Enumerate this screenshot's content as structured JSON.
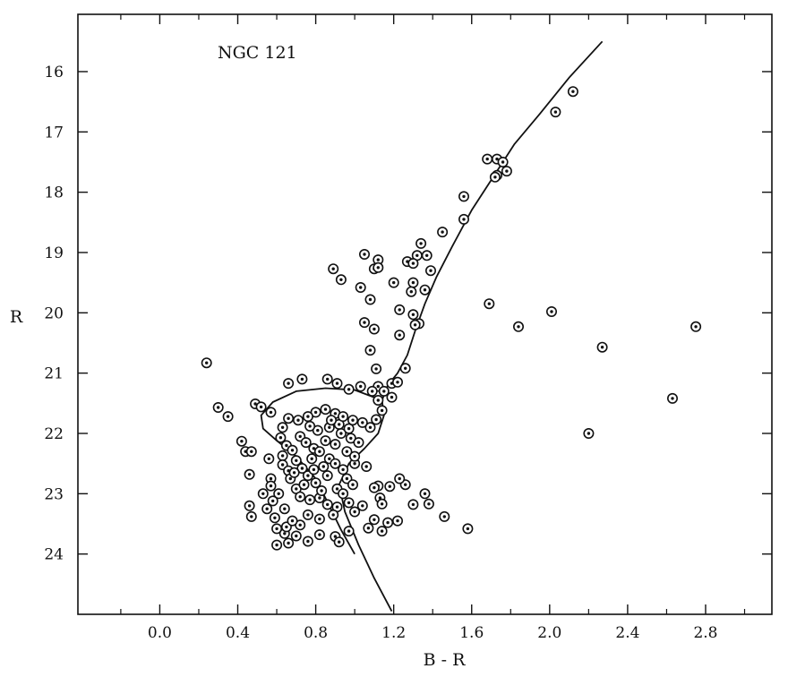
{
  "chart_data": {
    "type": "scatter",
    "title": "NGC 121",
    "xlabel": "B - R",
    "ylabel": "R",
    "xlim": [
      -0.42,
      3.14
    ],
    "ylim": [
      25.0,
      15.05
    ],
    "y_inverted": true,
    "x_ticks": [
      0.0,
      0.4,
      0.8,
      1.2,
      1.6,
      2.0,
      2.4,
      2.8
    ],
    "x_tick_labels": [
      "0.0",
      "0.4",
      "0.8",
      "1.2",
      "1.6",
      "2.0",
      "2.4",
      "2.8"
    ],
    "y_ticks": [
      16,
      17,
      18,
      19,
      20,
      21,
      22,
      23,
      24
    ],
    "y_tick_labels": [
      "16",
      "17",
      "18",
      "19",
      "20",
      "21",
      "22",
      "23",
      "24"
    ],
    "minor_x_step": 0.2,
    "grid": false,
    "legend": "none",
    "marker_color": "#111111",
    "line_color": "#111111",
    "isochrone": {
      "giant_and_subgiant": [
        [
          2.27,
          15.5
        ],
        [
          2.1,
          16.1
        ],
        [
          1.95,
          16.7
        ],
        [
          1.82,
          17.2
        ],
        [
          1.72,
          17.7
        ],
        [
          1.6,
          18.3
        ],
        [
          1.5,
          18.9
        ],
        [
          1.42,
          19.4
        ],
        [
          1.36,
          19.85
        ],
        [
          1.31,
          20.3
        ],
        [
          1.27,
          20.7
        ],
        [
          1.22,
          21.0
        ],
        [
          1.17,
          21.2
        ],
        [
          1.14,
          21.45
        ],
        [
          1.15,
          21.7
        ],
        [
          1.12,
          22.0
        ],
        [
          1.05,
          22.25
        ],
        [
          0.97,
          22.5
        ],
        [
          0.92,
          22.85
        ],
        [
          0.95,
          23.3
        ],
        [
          1.02,
          23.85
        ],
        [
          1.1,
          24.4
        ],
        [
          1.19,
          24.95
        ]
      ],
      "horizontal_branch_loop": [
        [
          1.14,
          21.45
        ],
        [
          1.0,
          21.28
        ],
        [
          0.85,
          21.25
        ],
        [
          0.7,
          21.3
        ],
        [
          0.58,
          21.48
        ],
        [
          0.52,
          21.7
        ],
        [
          0.53,
          21.92
        ],
        [
          0.6,
          22.12
        ],
        [
          0.7,
          22.38
        ],
        [
          0.8,
          22.75
        ],
        [
          0.87,
          23.2
        ],
        [
          0.93,
          23.6
        ],
        [
          1.0,
          24.0
        ]
      ]
    },
    "series": [
      {
        "points": [
          [
            2.12,
            16.33
          ],
          [
            2.03,
            16.67
          ],
          [
            1.68,
            17.45
          ],
          [
            1.73,
            17.45
          ],
          [
            1.76,
            17.5
          ],
          [
            1.78,
            17.65
          ],
          [
            1.73,
            17.72
          ],
          [
            1.72,
            17.75
          ],
          [
            1.56,
            18.07
          ],
          [
            1.56,
            18.45
          ],
          [
            1.45,
            18.66
          ],
          [
            1.34,
            18.85
          ],
          [
            1.32,
            19.05
          ],
          [
            1.27,
            19.15
          ],
          [
            1.3,
            19.18
          ],
          [
            1.37,
            19.05
          ],
          [
            1.39,
            19.3
          ],
          [
            1.2,
            19.5
          ],
          [
            1.05,
            19.03
          ],
          [
            1.12,
            19.12
          ],
          [
            1.1,
            19.27
          ],
          [
            1.12,
            19.25
          ],
          [
            0.89,
            19.27
          ],
          [
            0.93,
            19.45
          ],
          [
            1.03,
            19.58
          ],
          [
            1.08,
            19.78
          ],
          [
            1.3,
            19.5
          ],
          [
            1.36,
            19.62
          ],
          [
            1.29,
            19.65
          ],
          [
            1.23,
            19.95
          ],
          [
            1.3,
            20.03
          ],
          [
            1.33,
            20.18
          ],
          [
            1.31,
            20.2
          ],
          [
            1.05,
            20.16
          ],
          [
            1.1,
            20.27
          ],
          [
            1.23,
            20.37
          ],
          [
            1.08,
            20.62
          ],
          [
            1.26,
            20.92
          ],
          [
            1.11,
            20.93
          ],
          [
            0.24,
            20.83
          ],
          [
            1.69,
            19.85
          ],
          [
            2.01,
            19.98
          ],
          [
            1.84,
            20.23
          ],
          [
            2.75,
            20.23
          ],
          [
            2.27,
            20.57
          ],
          [
            2.63,
            21.42
          ],
          [
            2.2,
            22.0
          ],
          [
            0.66,
            21.17
          ],
          [
            0.73,
            21.1
          ],
          [
            0.86,
            21.1
          ],
          [
            0.91,
            21.17
          ],
          [
            0.97,
            21.27
          ],
          [
            1.03,
            21.22
          ],
          [
            1.12,
            21.22
          ],
          [
            1.15,
            21.3
          ],
          [
            1.19,
            21.17
          ],
          [
            1.22,
            21.15
          ],
          [
            0.3,
            21.57
          ],
          [
            0.35,
            21.72
          ],
          [
            0.42,
            22.13
          ],
          [
            0.44,
            22.3
          ],
          [
            0.47,
            22.3
          ],
          [
            0.46,
            22.68
          ],
          [
            0.49,
            21.51
          ],
          [
            0.52,
            21.56
          ],
          [
            0.57,
            21.65
          ],
          [
            0.56,
            22.42
          ],
          [
            0.57,
            22.75
          ],
          [
            0.57,
            22.87
          ],
          [
            0.61,
            23.0
          ],
          [
            0.46,
            23.2
          ],
          [
            0.47,
            23.38
          ],
          [
            0.55,
            23.25
          ],
          [
            0.59,
            23.4
          ],
          [
            0.6,
            23.58
          ],
          [
            0.64,
            23.66
          ],
          [
            0.6,
            23.85
          ],
          [
            0.66,
            23.82
          ],
          [
            0.65,
            23.55
          ],
          [
            0.7,
            23.7
          ],
          [
            0.72,
            23.52
          ],
          [
            0.76,
            23.79
          ],
          [
            0.82,
            23.68
          ],
          [
            0.9,
            23.71
          ],
          [
            0.92,
            23.8
          ],
          [
            0.97,
            23.62
          ],
          [
            1.07,
            23.57
          ],
          [
            1.1,
            23.43
          ],
          [
            1.14,
            23.62
          ],
          [
            1.17,
            23.48
          ],
          [
            1.22,
            23.45
          ],
          [
            1.3,
            23.18
          ],
          [
            1.36,
            23.0
          ],
          [
            1.38,
            23.17
          ],
          [
            1.46,
            23.38
          ],
          [
            1.58,
            23.58
          ],
          [
            1.26,
            22.85
          ],
          [
            1.23,
            22.75
          ],
          [
            1.18,
            22.88
          ],
          [
            1.12,
            22.87
          ],
          [
            1.1,
            22.9
          ],
          [
            1.13,
            23.07
          ],
          [
            1.14,
            23.17
          ],
          [
            1.06,
            22.55
          ],
          [
            1.0,
            22.5
          ],
          [
            1.08,
            21.9
          ],
          [
            1.04,
            21.82
          ],
          [
            1.11,
            21.77
          ],
          [
            1.14,
            21.62
          ],
          [
            1.19,
            21.4
          ],
          [
            0.85,
            21.6
          ],
          [
            0.9,
            21.67
          ],
          [
            0.8,
            21.65
          ],
          [
            0.76,
            21.72
          ],
          [
            0.71,
            21.78
          ],
          [
            0.66,
            21.75
          ],
          [
            0.63,
            21.9
          ],
          [
            0.62,
            22.07
          ],
          [
            0.65,
            22.2
          ],
          [
            0.63,
            22.37
          ],
          [
            0.63,
            22.52
          ],
          [
            0.66,
            22.62
          ],
          [
            0.67,
            22.75
          ],
          [
            0.7,
            22.92
          ],
          [
            0.72,
            23.05
          ],
          [
            0.77,
            23.1
          ],
          [
            0.82,
            23.07
          ],
          [
            0.86,
            23.18
          ],
          [
            0.91,
            23.22
          ],
          [
            0.97,
            23.15
          ],
          [
            1.0,
            23.3
          ],
          [
            1.04,
            23.2
          ],
          [
            0.72,
            22.05
          ],
          [
            0.75,
            22.15
          ],
          [
            0.79,
            22.25
          ],
          [
            0.82,
            22.3
          ],
          [
            0.87,
            22.42
          ],
          [
            0.9,
            22.5
          ],
          [
            0.94,
            22.6
          ],
          [
            0.96,
            22.75
          ],
          [
            0.99,
            22.85
          ],
          [
            0.84,
            22.55
          ],
          [
            0.78,
            22.42
          ],
          [
            0.73,
            22.58
          ],
          [
            0.76,
            22.7
          ],
          [
            0.8,
            22.82
          ],
          [
            0.83,
            22.95
          ],
          [
            0.68,
            22.28
          ],
          [
            0.7,
            22.45
          ],
          [
            0.69,
            22.65
          ],
          [
            0.74,
            22.85
          ],
          [
            0.93,
            22.0
          ],
          [
            0.98,
            22.08
          ],
          [
            1.02,
            22.15
          ],
          [
            0.97,
            21.92
          ],
          [
            0.92,
            21.85
          ],
          [
            0.87,
            21.9
          ],
          [
            0.81,
            21.95
          ],
          [
            0.77,
            21.88
          ],
          [
            0.85,
            22.12
          ],
          [
            0.9,
            22.18
          ],
          [
            0.96,
            22.3
          ],
          [
            1.0,
            22.38
          ],
          [
            0.79,
            22.6
          ],
          [
            0.86,
            22.7
          ],
          [
            0.91,
            22.92
          ],
          [
            0.94,
            23.0
          ],
          [
            0.89,
            23.35
          ],
          [
            0.82,
            23.42
          ],
          [
            0.76,
            23.35
          ],
          [
            0.68,
            23.45
          ],
          [
            0.64,
            23.25
          ],
          [
            0.58,
            23.12
          ],
          [
            0.53,
            23.0
          ],
          [
            0.88,
            21.78
          ],
          [
            0.94,
            21.72
          ],
          [
            0.99,
            21.78
          ],
          [
            1.12,
            21.45
          ],
          [
            1.09,
            21.3
          ]
        ]
      }
    ]
  }
}
